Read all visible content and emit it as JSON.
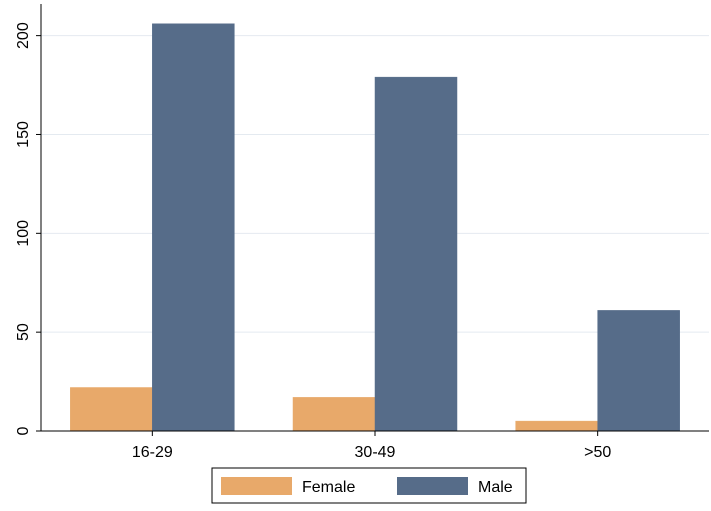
{
  "chart_data": {
    "type": "bar",
    "title": "",
    "xlabel": "",
    "ylabel": "",
    "categories": [
      "16-29",
      "30-49",
      ">50"
    ],
    "series": [
      {
        "name": "Female",
        "values": [
          22,
          17,
          5
        ],
        "color": "#E8A96A"
      },
      {
        "name": "Male",
        "values": [
          206,
          179,
          61
        ],
        "color": "#566C89"
      }
    ],
    "ylim": [
      0,
      216
    ],
    "y_ticks": [
      0,
      50,
      100,
      150,
      200
    ],
    "grid": true,
    "legend_position": "bottom-center",
    "colors": {
      "plot_border": "#000000",
      "grid": "#E4EAF0"
    }
  }
}
